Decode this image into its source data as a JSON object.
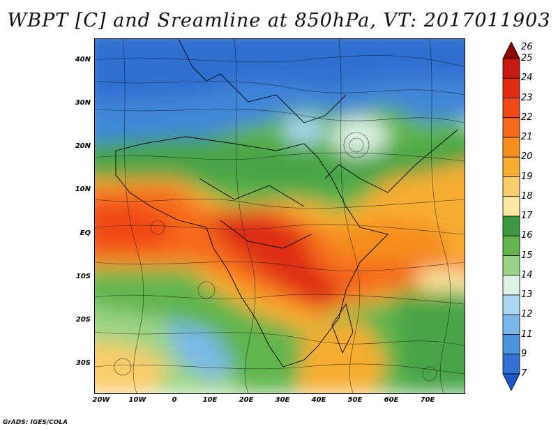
{
  "title": "WBPT [C] and Sreamline at 850hPa, VT: 2017011903",
  "credit": "GrADS: IGES/COLA",
  "lat_labels": [
    "40N",
    "30N",
    "20N",
    "10N",
    "EQ",
    "10S",
    "20S",
    "30S"
  ],
  "lon_labels": [
    "20W",
    "10W",
    "0",
    "10E",
    "20E",
    "30E",
    "40E",
    "50E",
    "60E",
    "70E"
  ],
  "colorbar": {
    "labels": [
      "26",
      "25",
      "24",
      "23",
      "22",
      "21",
      "20",
      "19",
      "18",
      "17",
      "16",
      "15",
      "14",
      "13",
      "12",
      "11",
      "9",
      "7"
    ],
    "colors": [
      "#8b0000",
      "#c41a0f",
      "#de2d12",
      "#f04a17",
      "#f56a1c",
      "#f58e1e",
      "#f6ad32",
      "#f8cc6a",
      "#fbe7a0",
      "#3a9a3e",
      "#62b54d",
      "#9bd485",
      "#ddf2e3",
      "#a9d8f0",
      "#79b8e8",
      "#4b93de",
      "#2f72d4",
      "#1f57c8"
    ]
  }
}
